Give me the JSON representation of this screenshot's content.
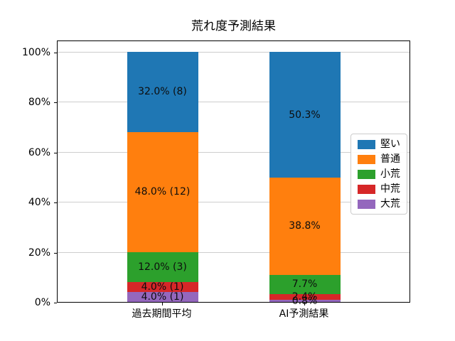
{
  "chart_data": {
    "type": "bar",
    "stacked": true,
    "title": "荒れ度予測結果",
    "categories": [
      "過去期間平均",
      "AI予測結果"
    ],
    "series": [
      {
        "key": "firm",
        "name": "堅い",
        "color": "#1f77b4",
        "values": [
          32.0,
          50.3
        ],
        "labels": [
          "32.0% (8)",
          "50.3%"
        ]
      },
      {
        "key": "normal",
        "name": "普通",
        "color": "#ff7f0e",
        "values": [
          48.0,
          38.8
        ],
        "labels": [
          "48.0% (12)",
          "38.8%"
        ]
      },
      {
        "key": "slightly-rough",
        "name": "小荒",
        "color": "#2ca02c",
        "values": [
          12.0,
          7.7
        ],
        "labels": [
          "12.0% (3)",
          "7.7%"
        ]
      },
      {
        "key": "moderately-rough",
        "name": "中荒",
        "color": "#d62728",
        "values": [
          4.0,
          2.4
        ],
        "labels": [
          "4.0% (1)",
          "2.4%"
        ]
      },
      {
        "key": "very-rough",
        "name": "大荒",
        "color": "#9467bd",
        "values": [
          4.0,
          0.8
        ],
        "labels": [
          "4.0% (1)",
          "0.8%"
        ]
      }
    ],
    "yticks": [
      "0%",
      "20%",
      "40%",
      "60%",
      "80%",
      "100%"
    ],
    "ylim": [
      0,
      100
    ],
    "xlabel": "",
    "ylabel": "",
    "grid": true,
    "legend_position": "center right"
  }
}
